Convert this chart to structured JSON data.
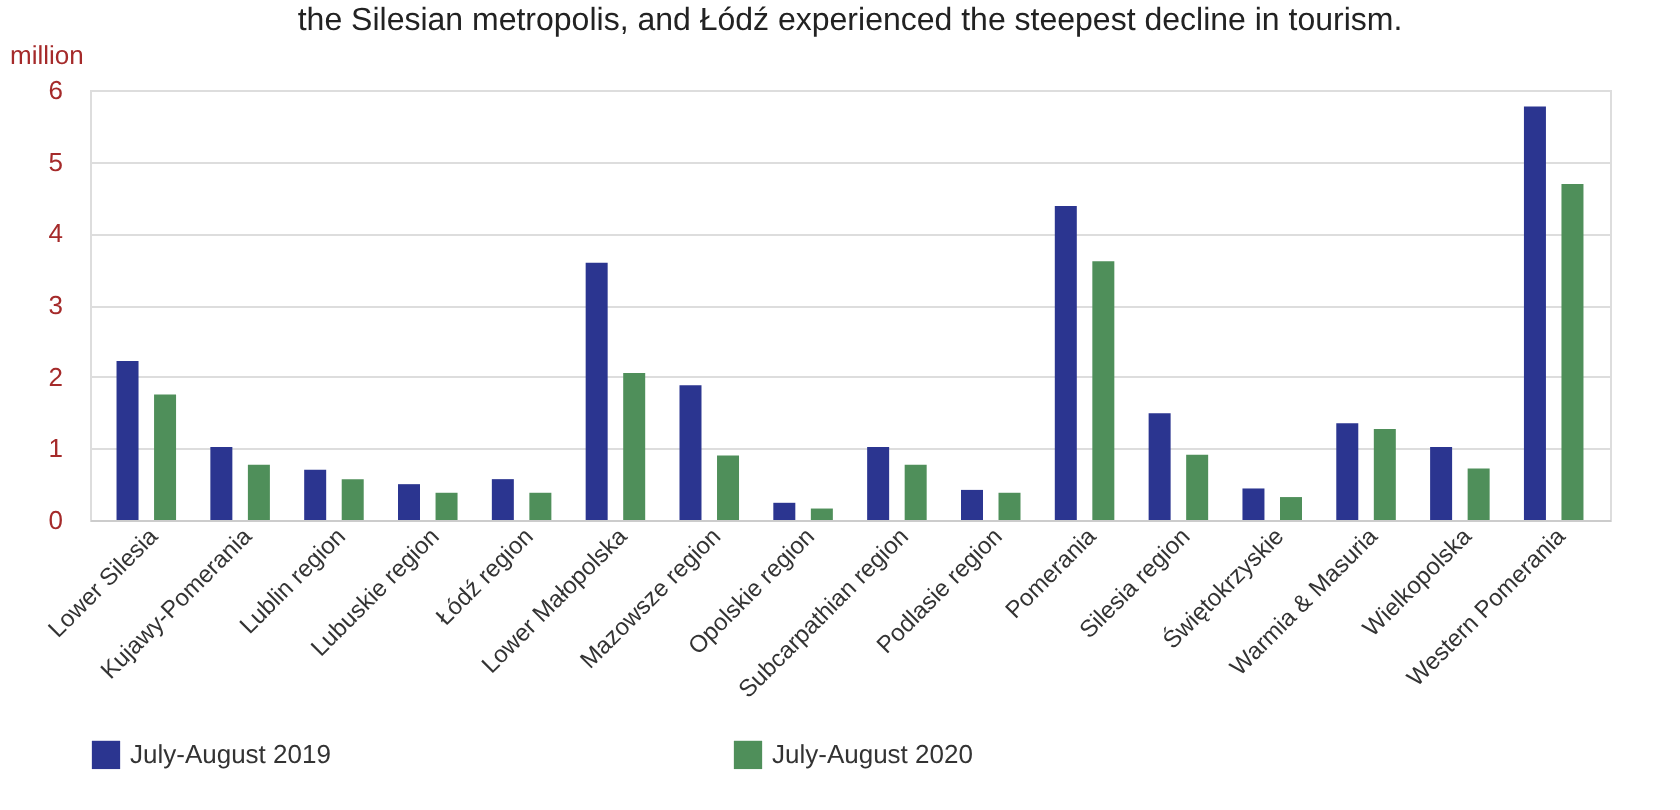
{
  "chart_data": {
    "type": "bar",
    "title": "the Silesian metropolis, and Łódź experienced the steepest decline in tourism.",
    "ylabel": "million",
    "categories": [
      "Lower Silesia",
      "Kujawy-Pomerania",
      "Lublin region",
      "Lubuskie region",
      "Łódź region",
      "Lower Małopolska",
      "Mazowsze region",
      "Opolskie region",
      "Subcarpathian region",
      "Podlasie region",
      "Pomerania",
      "Silesia region",
      "Świętokrzyskie",
      "Warmia & Masuria",
      "Wielkopolska",
      "Western Pomerania"
    ],
    "series": [
      {
        "name": "July-August 2019",
        "color": "#2b3590",
        "values": [
          2.22,
          1.02,
          0.7,
          0.5,
          0.57,
          3.59,
          1.88,
          0.24,
          1.02,
          0.42,
          4.38,
          1.49,
          0.44,
          1.35,
          1.02,
          5.77
        ]
      },
      {
        "name": "July-August 2020",
        "color": "#4f8f5a",
        "values": [
          1.75,
          0.77,
          0.57,
          0.38,
          0.38,
          2.05,
          0.9,
          0.16,
          0.77,
          0.38,
          3.61,
          0.91,
          0.32,
          1.27,
          0.72,
          4.69
        ]
      }
    ],
    "ylim": [
      0,
      6
    ],
    "yticks": [
      0,
      1,
      2,
      3,
      4,
      5,
      6
    ],
    "grid": "y",
    "legend": "bottom"
  }
}
